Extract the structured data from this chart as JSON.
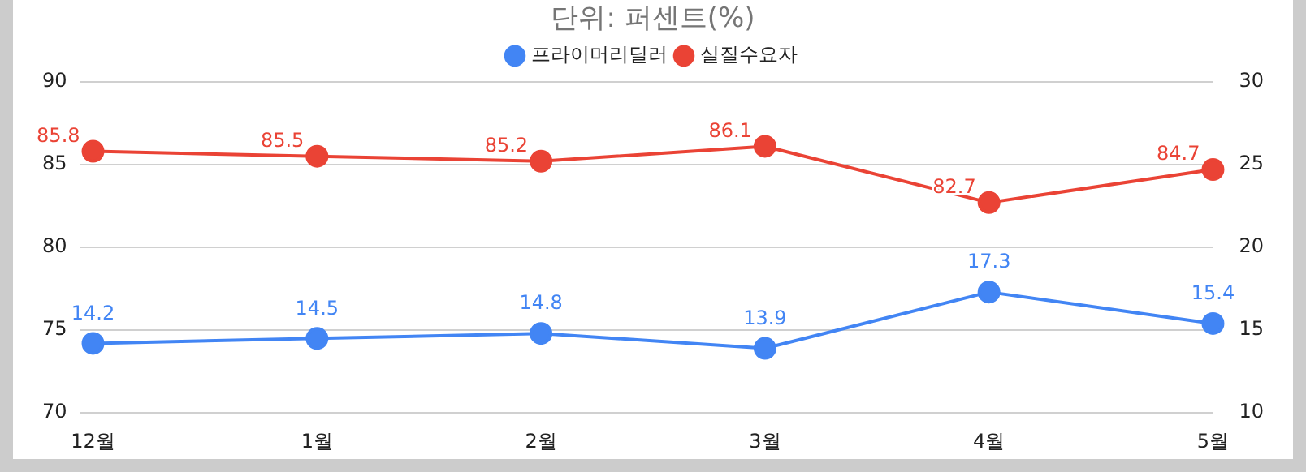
{
  "chart_data": {
    "type": "line",
    "title": "단위: 퍼센트(%)",
    "categories": [
      "12월",
      "1월",
      "2월",
      "3월",
      "4월",
      "5월"
    ],
    "series": [
      {
        "name": "프라이머리딜러",
        "color": "#4285f4",
        "values": [
          14.2,
          14.5,
          14.8,
          13.9,
          17.3,
          15.4
        ],
        "axis": "y2"
      },
      {
        "name": "실질수요자",
        "color": "#ea4335",
        "values": [
          85.8,
          85.5,
          85.2,
          86.1,
          82.7,
          84.7
        ]
      }
    ],
    "ylim": [
      70,
      90
    ],
    "yticks": [
      70,
      75,
      80,
      85,
      90
    ],
    "y2lim": [
      10,
      30
    ],
    "y2ticks": [
      10,
      15,
      20,
      25,
      30
    ],
    "grid": "y",
    "legend": "top",
    "marker": "circle",
    "line_style": "solid",
    "data_labels": true
  }
}
